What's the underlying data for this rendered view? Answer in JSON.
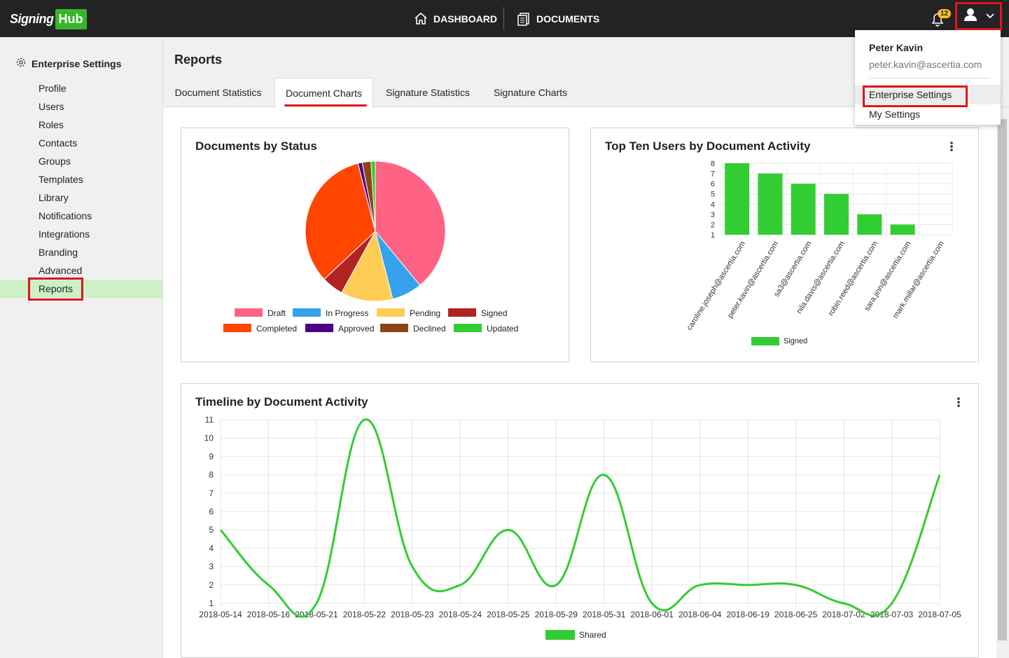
{
  "header": {
    "logo_text": "Signing",
    "logo_accent": "Hub",
    "nav": [
      {
        "label": "DASHBOARD",
        "icon": "home-icon"
      },
      {
        "label": "DOCUMENTS",
        "icon": "documents-icon"
      }
    ],
    "notification_count": "12"
  },
  "user_menu": {
    "name": "Peter Kavin",
    "email": "peter.kavin@ascertia.com",
    "items": [
      {
        "label": "Enterprise Settings",
        "highlighted": true
      },
      {
        "label": "My Settings",
        "highlighted": false
      }
    ]
  },
  "sidebar": {
    "title": "Enterprise Settings",
    "items": [
      {
        "label": "Profile"
      },
      {
        "label": "Users"
      },
      {
        "label": "Roles"
      },
      {
        "label": "Contacts"
      },
      {
        "label": "Groups"
      },
      {
        "label": "Templates"
      },
      {
        "label": "Library"
      },
      {
        "label": "Notifications"
      },
      {
        "label": "Integrations"
      },
      {
        "label": "Branding"
      },
      {
        "label": "Advanced"
      },
      {
        "label": "Reports",
        "active": true
      }
    ]
  },
  "page": {
    "title": "Reports",
    "tabs": [
      {
        "label": "Document Statistics"
      },
      {
        "label": "Document Charts",
        "active": true
      },
      {
        "label": "Signature Statistics"
      },
      {
        "label": "Signature Charts"
      }
    ]
  },
  "colors": {
    "accent": "#35b729",
    "highlight_border": "#e0141e",
    "active_nav_bg": "#cdf0c6"
  },
  "chart_data": [
    {
      "type": "pie",
      "title": "Documents by Status",
      "legend_position": "bottom",
      "labels": [
        "Draft",
        "In Progress",
        "Pending",
        "Signed",
        "Completed",
        "Approved",
        "Declined",
        "Updated"
      ],
      "values": [
        39,
        7,
        12,
        5,
        33,
        1,
        2,
        1
      ],
      "colors": [
        "#ff6384",
        "#36a2eb",
        "#ffcd56",
        "#b22222",
        "#ff4500",
        "#4b0082",
        "#8b4513",
        "#32cd32"
      ]
    },
    {
      "type": "bar",
      "title": "Top Ten Users by Document Activity",
      "legend_position": "bottom",
      "categories": [
        "caroline.joseph@ascertia.com",
        "peter.kavin@ascertia.com",
        "sa3@ascertia.com",
        "nila.davis@ascertia.com",
        "robin.reed@ascertia.com",
        "sara.jinn@ascertia.com",
        "mark.millar@ascertia.com"
      ],
      "series": [
        {
          "name": "Signed",
          "values": [
            8,
            7,
            6,
            5,
            3,
            2,
            1
          ],
          "color": "#32cd32"
        }
      ],
      "ylim": [
        1,
        8
      ],
      "yticks": [
        1,
        2,
        3,
        4,
        5,
        6,
        7,
        8
      ],
      "grid": true
    },
    {
      "type": "line",
      "title": "Timeline by Document Activity",
      "legend_position": "bottom",
      "x": [
        "2018-05-14",
        "2018-05-16",
        "2018-05-21",
        "2018-05-22",
        "2018-05-23",
        "2018-05-24",
        "2018-05-25",
        "2018-05-29",
        "2018-05-31",
        "2018-06-01",
        "2018-06-04",
        "2018-06-19",
        "2018-06-25",
        "2018-07-02",
        "2018-07-03",
        "2018-07-05"
      ],
      "series": [
        {
          "name": "Shared",
          "values": [
            5,
            2,
            1,
            11,
            3,
            2,
            5,
            2,
            8,
            1,
            2,
            2,
            2,
            1,
            1,
            8
          ],
          "color": "#32cd32"
        }
      ],
      "ylim": [
        1,
        11
      ],
      "yticks": [
        1,
        2,
        3,
        4,
        5,
        6,
        7,
        8,
        9,
        10,
        11
      ],
      "grid": true
    }
  ]
}
